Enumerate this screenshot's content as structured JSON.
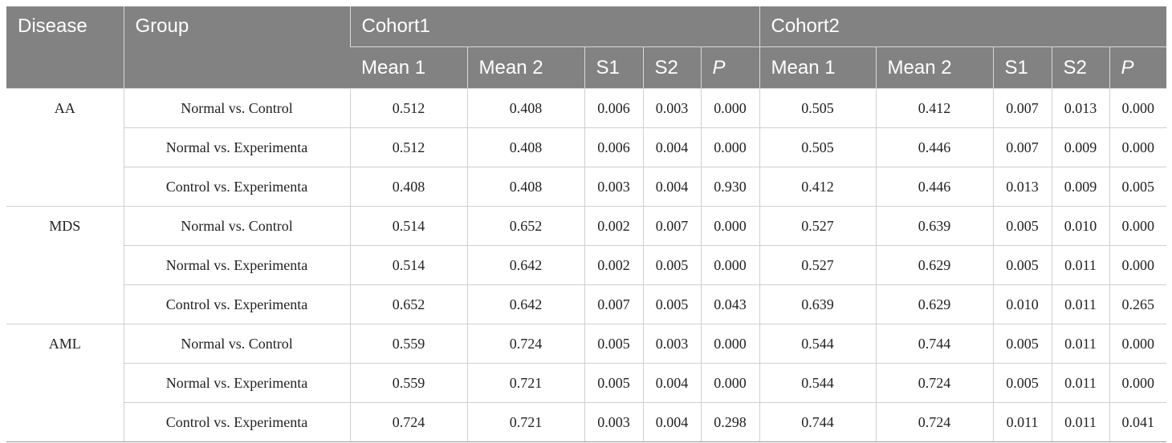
{
  "header": {
    "disease": "Disease",
    "group": "Group",
    "cohort1": "Cohort1",
    "cohort2": "Cohort2",
    "sub": [
      "Mean 1",
      "Mean 2",
      "S1",
      "S2",
      "P",
      "Mean 1",
      "Mean 2",
      "S1",
      "S2",
      "P"
    ]
  },
  "groups": [
    {
      "disease": "AA",
      "rows": [
        [
          "Normal vs. Control",
          "0.512",
          "0.408",
          "0.006",
          "0.003",
          "0.000",
          "0.505",
          "0.412",
          "0.007",
          "0.013",
          "0.000"
        ],
        [
          "Normal vs. Experimenta",
          "0.512",
          "0.408",
          "0.006",
          "0.004",
          "0.000",
          "0.505",
          "0.446",
          "0.007",
          "0.009",
          "0.000"
        ],
        [
          "Control vs. Experimenta",
          "0.408",
          "0.408",
          "0.003",
          "0.004",
          "0.930",
          "0.412",
          "0.446",
          "0.013",
          "0.009",
          "0.005"
        ]
      ]
    },
    {
      "disease": "MDS",
      "rows": [
        [
          "Normal vs. Control",
          "0.514",
          "0.652",
          "0.002",
          "0.007",
          "0.000",
          "0.527",
          "0.639",
          "0.005",
          "0.010",
          "0.000"
        ],
        [
          "Normal vs. Experimenta",
          "0.514",
          "0.642",
          "0.002",
          "0.005",
          "0.000",
          "0.527",
          "0.629",
          "0.005",
          "0.011",
          "0.000"
        ],
        [
          "Control vs. Experimenta",
          "0.652",
          "0.642",
          "0.007",
          "0.005",
          "0.043",
          "0.639",
          "0.629",
          "0.010",
          "0.011",
          "0.265"
        ]
      ]
    },
    {
      "disease": "AML",
      "rows": [
        [
          "Normal vs. Control",
          "0.559",
          "0.724",
          "0.005",
          "0.003",
          "0.000",
          "0.544",
          "0.744",
          "0.005",
          "0.011",
          "0.000"
        ],
        [
          "Normal vs. Experimenta",
          "0.559",
          "0.721",
          "0.005",
          "0.004",
          "0.000",
          "0.544",
          "0.724",
          "0.005",
          "0.011",
          "0.000"
        ],
        [
          "Control vs. Experimenta",
          "0.724",
          "0.721",
          "0.003",
          "0.004",
          "0.298",
          "0.744",
          "0.724",
          "0.011",
          "0.011",
          "0.041"
        ]
      ]
    }
  ]
}
